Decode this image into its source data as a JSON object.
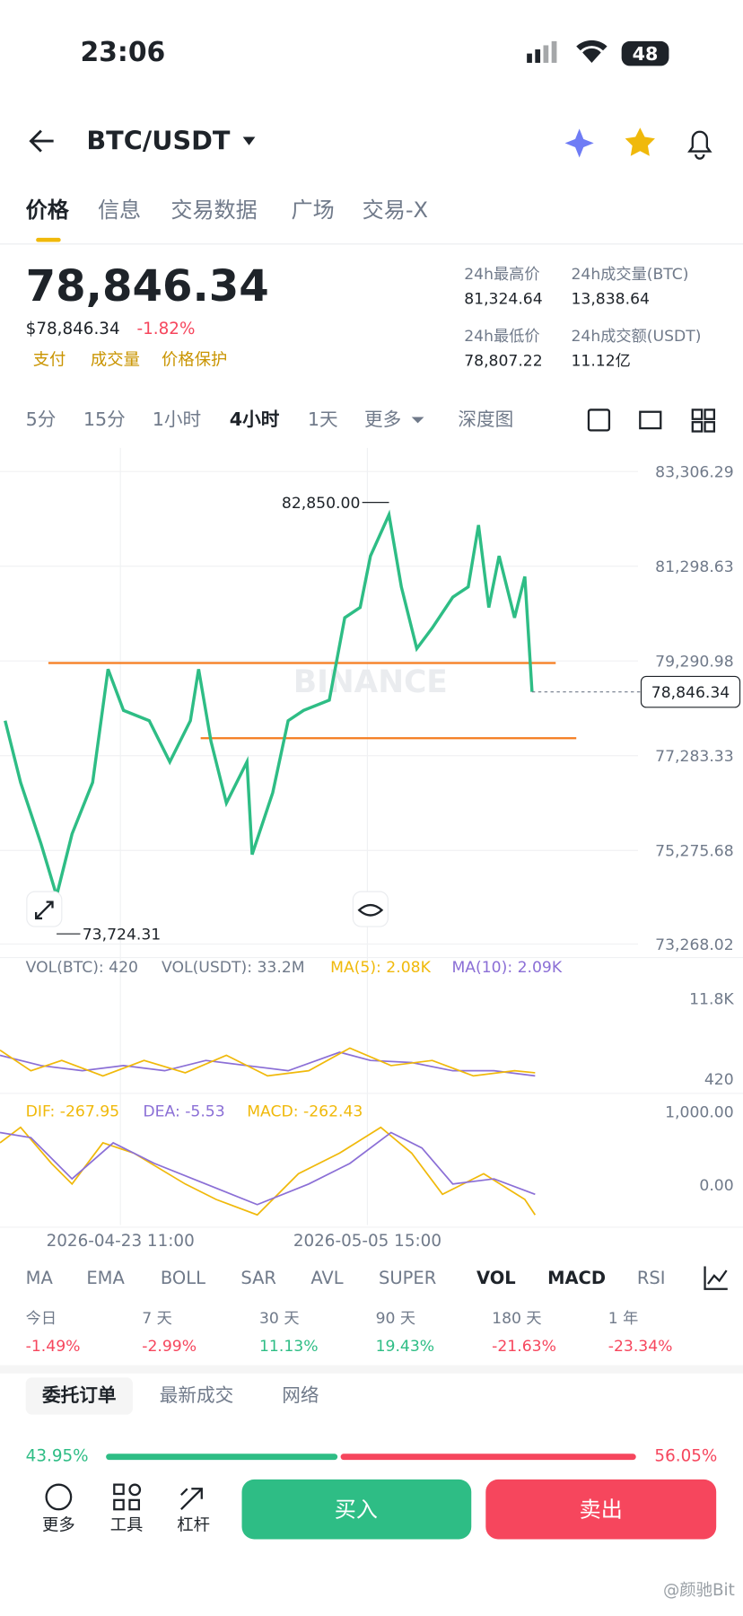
{
  "status_bar": {
    "time": "23:06",
    "battery": "48"
  },
  "header": {
    "pair": "BTC/USDT"
  },
  "tabs": [
    "价格",
    "信息",
    "交易数据",
    "广场",
    "交易-X"
  ],
  "price": {
    "last": "78,846.34",
    "usd": "$78,846.34",
    "change": "-1.82%",
    "tags": [
      "支付",
      "成交量",
      "价格保护"
    ]
  },
  "stats": [
    {
      "label": "24h最高价",
      "value": "81,324.64"
    },
    {
      "label": "24h成交量(BTC)",
      "value": "13,838.64"
    },
    {
      "label": "24h最低价",
      "value": "78,807.22"
    },
    {
      "label": "24h成交额(USDT)",
      "value": "11.12亿"
    }
  ],
  "intervals": [
    "5分",
    "15分",
    "1小时",
    "4小时",
    "1天",
    "更多",
    "深度图"
  ],
  "chart": {
    "y_labels": [
      "83,306.29",
      "81,298.63",
      "79,290.98",
      "77,283.33",
      "75,275.68",
      "73,268.02"
    ],
    "high_label": "82,850.00",
    "low_label": "73,724.31",
    "current_label": "78,846.34",
    "watermark": "BINANCE"
  },
  "volume": {
    "legend": [
      "VOL(BTC): 420",
      "VOL(USDT): 33.2M",
      "MA(5): 2.08K",
      "MA(10): 2.09K"
    ],
    "y_labels": [
      "11.8K",
      "420"
    ]
  },
  "macd": {
    "legend": [
      "DIF: -267.95",
      "DEA: -5.53",
      "MACD: -262.43"
    ],
    "y_labels": [
      "1,000.00",
      "0.00"
    ]
  },
  "x_labels": [
    "2026-04-23 11:00",
    "2026-05-05 15:00"
  ],
  "indicators": [
    "MA",
    "EMA",
    "BOLL",
    "SAR",
    "AVL",
    "SUPER",
    "VOL",
    "MACD",
    "RSI"
  ],
  "performance": [
    {
      "label": "今日",
      "value": "-1.49%"
    },
    {
      "label": "7 天",
      "value": "-2.99%"
    },
    {
      "label": "30 天",
      "value": "11.13%"
    },
    {
      "label": "90 天",
      "value": "19.43%"
    },
    {
      "label": "180 天",
      "value": "-21.63%"
    },
    {
      "label": "1 年",
      "value": "-23.34%"
    }
  ],
  "order_tabs": [
    "委托订单",
    "最新成交",
    "网络"
  ],
  "ratio": {
    "buy": "43.95%",
    "sell": "56.05%"
  },
  "bottom_bar": {
    "tools": [
      "更多",
      "工具",
      "杠杆"
    ],
    "buy": "买入",
    "sell": "卖出"
  },
  "watermark": "@颜驰Bit"
}
